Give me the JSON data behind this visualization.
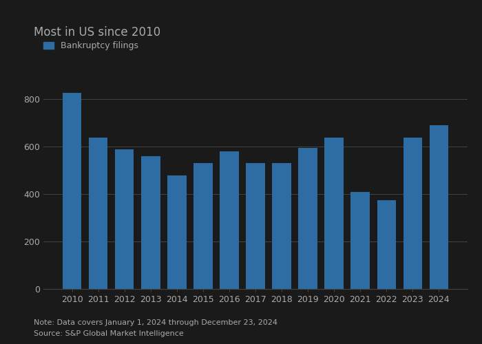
{
  "title": "Most in US since 2010",
  "legend_label": "Bankruptcy filings",
  "bar_color": "#2e6da4",
  "years": [
    2010,
    2011,
    2012,
    2013,
    2014,
    2015,
    2016,
    2017,
    2018,
    2019,
    2020,
    2021,
    2022,
    2023,
    2024
  ],
  "values": [
    828,
    638,
    590,
    560,
    480,
    530,
    580,
    530,
    530,
    595,
    638,
    408,
    374,
    638,
    690
  ],
  "ylim": [
    0,
    900
  ],
  "yticks": [
    0,
    200,
    400,
    600,
    800
  ],
  "note": "Note: Data covers January 1, 2024 through December 23, 2024",
  "source": "Source: S&P Global Market Intelligence",
  "background_color": "#1a1a1a",
  "plot_bg_color": "#1a1a1a",
  "grid_color": "#444444",
  "text_color": "#aaaaaa",
  "title_color": "#aaaaaa",
  "title_fontsize": 12,
  "axis_fontsize": 9,
  "note_fontsize": 8,
  "bar_width": 0.72
}
